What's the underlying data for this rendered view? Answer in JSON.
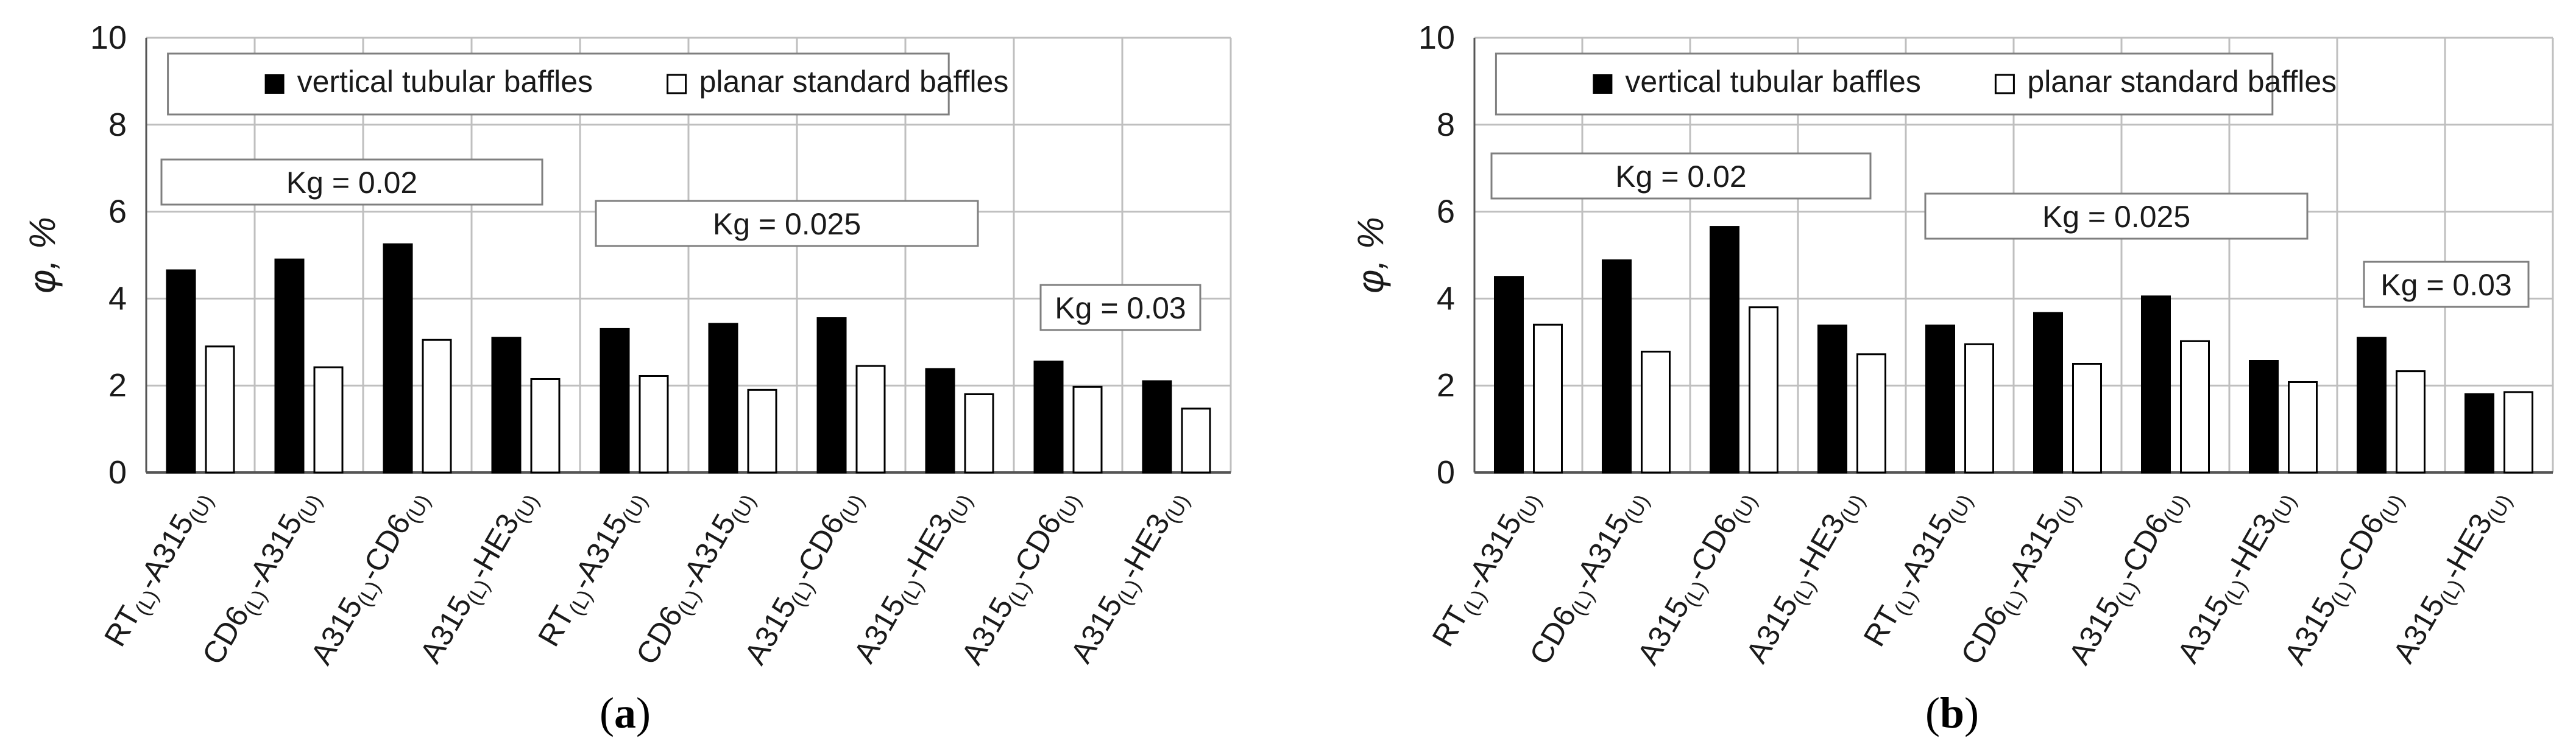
{
  "figure": {
    "legend": {
      "vertical": "vertical tubular baffles",
      "planar": "planar standard baffles"
    },
    "colors": {
      "vertical_fill": "#000000",
      "planar_fill": "#ffffff",
      "grid": "#bfbfbf",
      "box_border": "#7f7f7f"
    }
  },
  "chart_data": [
    {
      "type": "bar",
      "panel_label": "(a)",
      "panel_letter": "a",
      "ylabel": "φ, %",
      "ylim": [
        0,
        10
      ],
      "yticks": [
        0,
        2,
        4,
        6,
        8,
        10
      ],
      "grid": true,
      "legend_position": "top",
      "categories": [
        {
          "base": "RT",
          "sub1": "(L)",
          "mid": "-A315",
          "sub2": "(U)"
        },
        {
          "base": "CD6",
          "sub1": "(L)",
          "mid": "-A315",
          "sub2": "(U)"
        },
        {
          "base": "A315",
          "sub1": "(L)",
          "mid": "-CD6",
          "sub2": "(U)"
        },
        {
          "base": "A315",
          "sub1": "(L)",
          "mid": "-HE3",
          "sub2": "(U)"
        },
        {
          "base": "RT",
          "sub1": "(L)",
          "mid": "-A315",
          "sub2": "(U)"
        },
        {
          "base": "CD6",
          "sub1": "(L)",
          "mid": "-A315",
          "sub2": "(U)"
        },
        {
          "base": "A315",
          "sub1": "(L)",
          "mid": "-CD6",
          "sub2": "(U)"
        },
        {
          "base": "A315",
          "sub1": "(L)",
          "mid": "-HE3",
          "sub2": "(U)"
        },
        {
          "base": "A315",
          "sub1": "(L)",
          "mid": "-CD6",
          "sub2": "(U)"
        },
        {
          "base": "A315",
          "sub1": "(L)",
          "mid": "-HE3",
          "sub2": "(U)"
        }
      ],
      "series": [
        {
          "name": "vertical tubular baffles",
          "values": [
            4.65,
            4.9,
            5.25,
            3.1,
            3.3,
            3.42,
            3.55,
            2.38,
            2.55,
            2.1
          ]
        },
        {
          "name": "planar standard baffles",
          "values": [
            2.9,
            2.42,
            3.05,
            2.15,
            2.22,
            1.9,
            2.45,
            1.8,
            1.97,
            1.47
          ]
        }
      ],
      "annotations": [
        {
          "text": "Kg = 0.02",
          "group": [
            0,
            3
          ]
        },
        {
          "text": "Kg = 0.025",
          "group": [
            4,
            7
          ]
        },
        {
          "text": "Kg = 0.03",
          "group": [
            8,
            9
          ]
        }
      ]
    },
    {
      "type": "bar",
      "panel_label": "(b)",
      "panel_letter": "b",
      "ylabel": "φ, %",
      "ylim": [
        0,
        10
      ],
      "yticks": [
        0,
        2,
        4,
        6,
        8,
        10
      ],
      "grid": true,
      "legend_position": "top",
      "categories": [
        {
          "base": "RT",
          "sub1": "(L)",
          "mid": "-A315",
          "sub2": "(U)"
        },
        {
          "base": "CD6",
          "sub1": "(L)",
          "mid": "-A315",
          "sub2": "(U)"
        },
        {
          "base": "A315",
          "sub1": "(L)",
          "mid": "-CD6",
          "sub2": "(U)"
        },
        {
          "base": "A315",
          "sub1": "(L)",
          "mid": "-HE3",
          "sub2": "(U)"
        },
        {
          "base": "RT",
          "sub1": "(L)",
          "mid": "-A315",
          "sub2": "(U)"
        },
        {
          "base": "CD6",
          "sub1": "(L)",
          "mid": "-A315",
          "sub2": "(U)"
        },
        {
          "base": "A315",
          "sub1": "(L)",
          "mid": "-CD6",
          "sub2": "(U)"
        },
        {
          "base": "A315",
          "sub1": "(L)",
          "mid": "-HE3",
          "sub2": "(U)"
        },
        {
          "base": "A315",
          "sub1": "(L)",
          "mid": "-CD6",
          "sub2": "(U)"
        },
        {
          "base": "A315",
          "sub1": "(L)",
          "mid": "-HE3",
          "sub2": "(U)"
        }
      ],
      "series": [
        {
          "name": "vertical tubular baffles",
          "values": [
            4.5,
            4.88,
            5.65,
            3.38,
            3.38,
            3.67,
            4.05,
            2.57,
            3.1,
            1.8
          ]
        },
        {
          "name": "planar standard baffles",
          "values": [
            3.4,
            2.78,
            3.8,
            2.72,
            2.95,
            2.5,
            3.02,
            2.08,
            2.33,
            1.85
          ]
        }
      ],
      "annotations": [
        {
          "text": "Kg = 0.02",
          "group": [
            0,
            3
          ]
        },
        {
          "text": "Kg = 0.025",
          "group": [
            4,
            7
          ]
        },
        {
          "text": "Kg = 0.03",
          "group": [
            8,
            9
          ]
        }
      ]
    }
  ]
}
